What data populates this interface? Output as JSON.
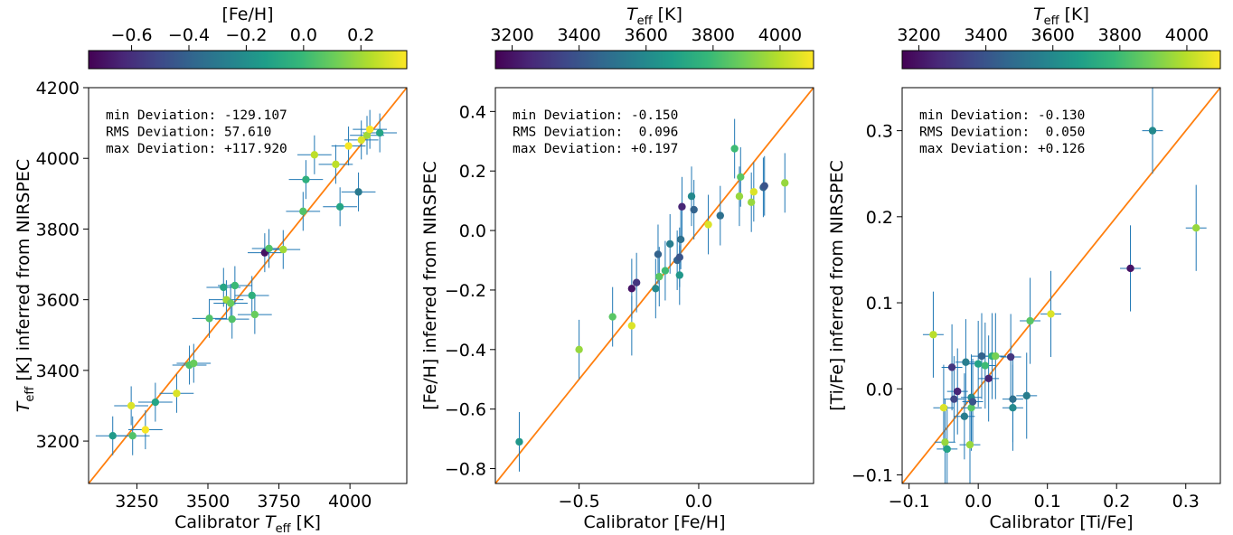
{
  "colors": {
    "identity_line": "#ff7f0e",
    "errorbar": "#1f77b4",
    "viridis": [
      "#440154",
      "#482878",
      "#3e4989",
      "#31688e",
      "#26828e",
      "#1f9e89",
      "#35b779",
      "#6ece58",
      "#b5de2b",
      "#fde725"
    ]
  },
  "chart_data": [
    {
      "type": "scatter",
      "panel": "teff",
      "xlabel": "Calibrator",
      "xlabel_symbol": "T",
      "xlabel_sub": "eff",
      "xlabel_unit": "[K]",
      "ylabel_symbol": "T",
      "ylabel_sub": "eff",
      "ylabel_rest": "[K] inferred from NIRSPEC",
      "xlim": [
        3080,
        4200
      ],
      "ylim": [
        3080,
        4200
      ],
      "xticks": [
        3250,
        3500,
        3750,
        4000
      ],
      "xtick_labels": [
        "3250",
        "3500",
        "3750",
        "4000"
      ],
      "yticks": [
        3200,
        3400,
        3600,
        3800,
        4000,
        4200
      ],
      "ytick_labels": [
        "3200",
        "3400",
        "3600",
        "3800",
        "4000",
        "4200"
      ],
      "stats": [
        "min Deviation: -129.107",
        "RMS Deviation: 57.610",
        "max Deviation: +117.920"
      ],
      "colorbar": {
        "label": "[Fe/H]",
        "label_symbol": "",
        "label_sub": "",
        "label_rest": "",
        "range": [
          -0.75,
          0.36
        ],
        "ticks": [
          -0.6,
          -0.4,
          -0.2,
          0.0,
          0.2
        ],
        "tick_labels": [
          "−0.6",
          "−0.4",
          "−0.2",
          "0.0",
          "0.2"
        ]
      },
      "points": [
        {
          "x": 3165,
          "y": 3215,
          "xerr": 60,
          "yerr": 55,
          "c": -0.15
        },
        {
          "x": 3235,
          "y": 3215,
          "xerr": 60,
          "yerr": 55,
          "c": 0.05
        },
        {
          "x": 3230,
          "y": 3300,
          "xerr": 60,
          "yerr": 55,
          "c": 0.3
        },
        {
          "x": 3280,
          "y": 3232,
          "xerr": 60,
          "yerr": 55,
          "c": 0.35
        },
        {
          "x": 3315,
          "y": 3310,
          "xerr": 60,
          "yerr": 55,
          "c": -0.1
        },
        {
          "x": 3390,
          "y": 3335,
          "xerr": 60,
          "yerr": 55,
          "c": 0.3
        },
        {
          "x": 3435,
          "y": 3415,
          "xerr": 60,
          "yerr": 55,
          "c": 0.05
        },
        {
          "x": 3450,
          "y": 3420,
          "xerr": 60,
          "yerr": 55,
          "c": 0.1
        },
        {
          "x": 3505,
          "y": 3547,
          "xerr": 60,
          "yerr": 55,
          "c": 0.05
        },
        {
          "x": 3555,
          "y": 3635,
          "xerr": 60,
          "yerr": 55,
          "c": -0.1
        },
        {
          "x": 3565,
          "y": 3600,
          "xerr": 60,
          "yerr": 55,
          "c": 0.2
        },
        {
          "x": 3580,
          "y": 3590,
          "xerr": 60,
          "yerr": 55,
          "c": 0.1
        },
        {
          "x": 3585,
          "y": 3545,
          "xerr": 60,
          "yerr": 55,
          "c": 0.05
        },
        {
          "x": 3595,
          "y": 3640,
          "xerr": 60,
          "yerr": 55,
          "c": 0.0
        },
        {
          "x": 3655,
          "y": 3612,
          "xerr": 60,
          "yerr": 55,
          "c": -0.05
        },
        {
          "x": 3665,
          "y": 3558,
          "xerr": 60,
          "yerr": 55,
          "c": 0.1
        },
        {
          "x": 3700,
          "y": 3733,
          "xerr": 60,
          "yerr": 55,
          "c": -0.7
        },
        {
          "x": 3715,
          "y": 3745,
          "xerr": 60,
          "yerr": 55,
          "c": 0.05
        },
        {
          "x": 3765,
          "y": 3742,
          "xerr": 60,
          "yerr": 55,
          "c": 0.2
        },
        {
          "x": 3835,
          "y": 3850,
          "xerr": 60,
          "yerr": 55,
          "c": 0.05
        },
        {
          "x": 3845,
          "y": 3940,
          "xerr": 60,
          "yerr": 55,
          "c": -0.05
        },
        {
          "x": 3875,
          "y": 4010,
          "xerr": 60,
          "yerr": 55,
          "c": 0.25
        },
        {
          "x": 3950,
          "y": 3983,
          "xerr": 60,
          "yerr": 55,
          "c": 0.25
        },
        {
          "x": 3965,
          "y": 3863,
          "xerr": 60,
          "yerr": 55,
          "c": -0.1
        },
        {
          "x": 3995,
          "y": 4035,
          "xerr": 60,
          "yerr": 55,
          "c": 0.35
        },
        {
          "x": 4030,
          "y": 3905,
          "xerr": 60,
          "yerr": 55,
          "c": -0.3
        },
        {
          "x": 4040,
          "y": 4052,
          "xerr": 60,
          "yerr": 55,
          "c": 0.3
        },
        {
          "x": 4060,
          "y": 4065,
          "xerr": 60,
          "yerr": 55,
          "c": 0.2
        },
        {
          "x": 4070,
          "y": 4082,
          "xerr": 60,
          "yerr": 55,
          "c": 0.35
        },
        {
          "x": 4105,
          "y": 4072,
          "xerr": 60,
          "yerr": 55,
          "c": -0.1
        }
      ]
    },
    {
      "type": "scatter",
      "panel": "feh",
      "xlabel": "Calibrator [Fe/H]",
      "xlabel_symbol": "",
      "xlabel_sub": "",
      "xlabel_unit": "",
      "ylabel_symbol": "",
      "ylabel_sub": "",
      "ylabel_rest": "[Fe/H] inferred from NIRSPEC",
      "xlim": [
        -0.85,
        0.48
      ],
      "ylim": [
        -0.85,
        0.48
      ],
      "xticks": [
        -0.5,
        0.0
      ],
      "xtick_labels": [
        "−0.5",
        "0.0"
      ],
      "yticks": [
        -0.8,
        -0.6,
        -0.4,
        -0.2,
        0.0,
        0.2,
        0.4
      ],
      "ytick_labels": [
        "−0.8",
        "−0.6",
        "−0.4",
        "−0.2",
        "0.0",
        "0.2",
        "0.4"
      ],
      "stats": [
        "min Deviation: -0.150",
        "RMS Deviation:  0.096",
        "max Deviation: +0.197"
      ],
      "colorbar": {
        "label": "",
        "label_symbol": "T",
        "label_sub": "eff",
        "label_rest": "[K]",
        "range": [
          3150,
          4100
        ],
        "ticks": [
          3200,
          3400,
          3600,
          3800,
          4000
        ],
        "tick_labels": [
          "3200",
          "3400",
          "3600",
          "3800",
          "4000"
        ]
      },
      "points": [
        {
          "x": -0.75,
          "y": -0.71,
          "yerr": 0.1,
          "c": 3650
        },
        {
          "x": -0.5,
          "y": -0.4,
          "yerr": 0.1,
          "c": 3950
        },
        {
          "x": -0.36,
          "y": -0.29,
          "yerr": 0.1,
          "c": 3850
        },
        {
          "x": -0.28,
          "y": -0.32,
          "yerr": 0.1,
          "c": 4050
        },
        {
          "x": -0.28,
          "y": -0.195,
          "yerr": 0.1,
          "c": 3200
        },
        {
          "x": -0.26,
          "y": -0.175,
          "yerr": 0.1,
          "c": 3300
        },
        {
          "x": -0.18,
          "y": -0.195,
          "yerr": 0.1,
          "c": 3600
        },
        {
          "x": -0.17,
          "y": -0.08,
          "yerr": 0.1,
          "c": 3450
        },
        {
          "x": -0.165,
          "y": -0.155,
          "yerr": 0.1,
          "c": 3850
        },
        {
          "x": -0.14,
          "y": -0.135,
          "yerr": 0.1,
          "c": 3800
        },
        {
          "x": -0.12,
          "y": -0.045,
          "yerr": 0.1,
          "c": 3550
        },
        {
          "x": -0.09,
          "y": -0.1,
          "yerr": 0.1,
          "c": 3450
        },
        {
          "x": -0.08,
          "y": -0.15,
          "yerr": 0.1,
          "c": 3650
        },
        {
          "x": -0.08,
          "y": -0.09,
          "yerr": 0.1,
          "c": 3400
        },
        {
          "x": -0.075,
          "y": -0.03,
          "yerr": 0.1,
          "c": 3500
        },
        {
          "x": -0.07,
          "y": 0.08,
          "yerr": 0.1,
          "c": 3250
        },
        {
          "x": -0.03,
          "y": 0.115,
          "yerr": 0.1,
          "c": 3600
        },
        {
          "x": -0.02,
          "y": 0.07,
          "yerr": 0.1,
          "c": 3450
        },
        {
          "x": 0.04,
          "y": 0.02,
          "yerr": 0.1,
          "c": 4050
        },
        {
          "x": 0.09,
          "y": 0.05,
          "yerr": 0.1,
          "c": 3500
        },
        {
          "x": 0.15,
          "y": 0.275,
          "yerr": 0.1,
          "c": 3800
        },
        {
          "x": 0.17,
          "y": 0.115,
          "yerr": 0.1,
          "c": 3950
        },
        {
          "x": 0.175,
          "y": 0.18,
          "yerr": 0.1,
          "c": 3850
        },
        {
          "x": 0.22,
          "y": 0.095,
          "yerr": 0.1,
          "c": 3950
        },
        {
          "x": 0.23,
          "y": 0.13,
          "yerr": 0.1,
          "c": 4050
        },
        {
          "x": 0.27,
          "y": 0.145,
          "yerr": 0.1,
          "c": 3450
        },
        {
          "x": 0.275,
          "y": 0.15,
          "yerr": 0.1,
          "c": 3400
        },
        {
          "x": 0.36,
          "y": 0.16,
          "yerr": 0.1,
          "c": 3950
        }
      ]
    },
    {
      "type": "scatter",
      "panel": "tife",
      "xlabel": "Calibrator [Ti/Fe]",
      "xlabel_symbol": "",
      "xlabel_sub": "",
      "xlabel_unit": "",
      "ylabel_symbol": "",
      "ylabel_sub": "",
      "ylabel_rest": "[Ti/Fe] inferred from NIRSPEC",
      "xlim": [
        -0.11,
        0.35
      ],
      "ylim": [
        -0.11,
        0.35
      ],
      "xticks": [
        -0.1,
        0.0,
        0.1,
        0.2,
        0.3
      ],
      "xtick_labels": [
        "−0.1",
        "0.0",
        "0.1",
        "0.2",
        "0.3"
      ],
      "yticks": [
        -0.1,
        0.0,
        0.1,
        0.2,
        0.3
      ],
      "ytick_labels": [
        "−0.1",
        "0.0",
        "0.1",
        "0.2",
        "0.3"
      ],
      "stats": [
        "min Deviation: -0.130",
        "RMS Deviation:  0.050",
        "max Deviation: +0.126"
      ],
      "colorbar": {
        "label": "",
        "label_symbol": "T",
        "label_sub": "eff",
        "label_rest": "[K]",
        "range": [
          3150,
          4100
        ],
        "ticks": [
          3200,
          3400,
          3600,
          3800,
          4000
        ],
        "tick_labels": [
          "3200",
          "3400",
          "3600",
          "3800",
          "4000"
        ]
      },
      "points": [
        {
          "x": -0.065,
          "y": 0.063,
          "xerr": 0.015,
          "yerr": 0.05,
          "c": 4000
        },
        {
          "x": -0.05,
          "y": -0.022,
          "xerr": 0.015,
          "yerr": 0.05,
          "c": 4050
        },
        {
          "x": -0.048,
          "y": -0.062,
          "xerr": 0.015,
          "yerr": 0.05,
          "c": 3950
        },
        {
          "x": -0.045,
          "y": -0.07,
          "xerr": 0.015,
          "yerr": 0.05,
          "c": 3700
        },
        {
          "x": -0.038,
          "y": 0.025,
          "xerr": 0.015,
          "yerr": 0.05,
          "c": 3300
        },
        {
          "x": -0.035,
          "y": -0.012,
          "xerr": 0.015,
          "yerr": 0.05,
          "c": 3350
        },
        {
          "x": -0.03,
          "y": -0.003,
          "xerr": 0.015,
          "yerr": 0.05,
          "c": 3250
        },
        {
          "x": -0.02,
          "y": -0.032,
          "xerr": 0.015,
          "yerr": 0.05,
          "c": 3550
        },
        {
          "x": -0.018,
          "y": 0.031,
          "xerr": 0.015,
          "yerr": 0.05,
          "c": 3550
        },
        {
          "x": -0.012,
          "y": -0.065,
          "xerr": 0.015,
          "yerr": 0.05,
          "c": 3950
        },
        {
          "x": -0.01,
          "y": -0.022,
          "xerr": 0.015,
          "yerr": 0.05,
          "c": 3850
        },
        {
          "x": -0.01,
          "y": -0.01,
          "xerr": 0.015,
          "yerr": 0.05,
          "c": 3600
        },
        {
          "x": -0.008,
          "y": -0.015,
          "xerr": 0.015,
          "yerr": 0.05,
          "c": 3400
        },
        {
          "x": 0.0,
          "y": 0.029,
          "xerr": 0.015,
          "yerr": 0.05,
          "c": 3700
        },
        {
          "x": 0.005,
          "y": 0.038,
          "xerr": 0.015,
          "yerr": 0.05,
          "c": 3450
        },
        {
          "x": 0.01,
          "y": 0.027,
          "xerr": 0.015,
          "yerr": 0.05,
          "c": 3800
        },
        {
          "x": 0.015,
          "y": 0.012,
          "xerr": 0.015,
          "yerr": 0.05,
          "c": 3250
        },
        {
          "x": 0.02,
          "y": 0.038,
          "xerr": 0.015,
          "yerr": 0.05,
          "c": 3750
        },
        {
          "x": 0.025,
          "y": 0.038,
          "xerr": 0.015,
          "yerr": 0.05,
          "c": 3900
        },
        {
          "x": 0.047,
          "y": 0.037,
          "xerr": 0.015,
          "yerr": 0.05,
          "c": 3300
        },
        {
          "x": 0.05,
          "y": -0.012,
          "xerr": 0.015,
          "yerr": 0.05,
          "c": 3500
        },
        {
          "x": 0.05,
          "y": -0.022,
          "xerr": 0.015,
          "yerr": 0.05,
          "c": 3600
        },
        {
          "x": 0.07,
          "y": -0.008,
          "xerr": 0.015,
          "yerr": 0.05,
          "c": 3550
        },
        {
          "x": 0.075,
          "y": 0.079,
          "xerr": 0.015,
          "yerr": 0.05,
          "c": 3850
        },
        {
          "x": 0.105,
          "y": 0.087,
          "xerr": 0.015,
          "yerr": 0.05,
          "c": 4050
        },
        {
          "x": 0.22,
          "y": 0.14,
          "xerr": 0.015,
          "yerr": 0.05,
          "c": 3200
        },
        {
          "x": 0.252,
          "y": 0.3,
          "xerr": 0.015,
          "yerr": 0.05,
          "c": 3600
        },
        {
          "x": 0.315,
          "y": 0.187,
          "xerr": 0.015,
          "yerr": 0.05,
          "c": 3950
        }
      ]
    }
  ]
}
